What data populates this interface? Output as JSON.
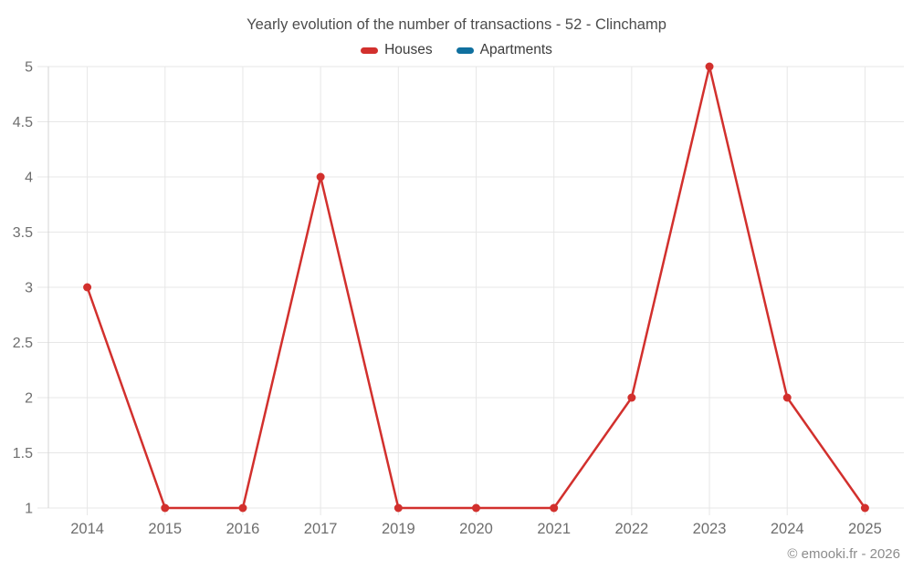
{
  "chart": {
    "title": "Yearly evolution of the number of transactions - 52 - Clinchamp",
    "footer": "© emooki.fr - 2026"
  },
  "chart_data": {
    "type": "line",
    "title": "Yearly evolution of the number of transactions - 52 - Clinchamp",
    "categories": [
      "2014",
      "2015",
      "2016",
      "2017",
      "2019",
      "2020",
      "2021",
      "2022",
      "2023",
      "2024",
      "2025"
    ],
    "series": [
      {
        "name": "Houses",
        "color": "#d2302d",
        "values": [
          3,
          1,
          1,
          4,
          1,
          1,
          1,
          2,
          5,
          2,
          1
        ]
      },
      {
        "name": "Apartments",
        "color": "#10709f",
        "values": []
      }
    ],
    "xlabel": "",
    "ylabel": "",
    "ylim": [
      1,
      5
    ],
    "y_ticks": [
      1,
      1.5,
      2,
      2.5,
      3,
      3.5,
      4,
      4.5,
      5
    ],
    "grid": true,
    "legend_position": "top",
    "colors": {
      "grid_line": "#e7e7e7",
      "axis_line": "#d4d4d4",
      "tick_label": "#6e6e6e"
    }
  }
}
